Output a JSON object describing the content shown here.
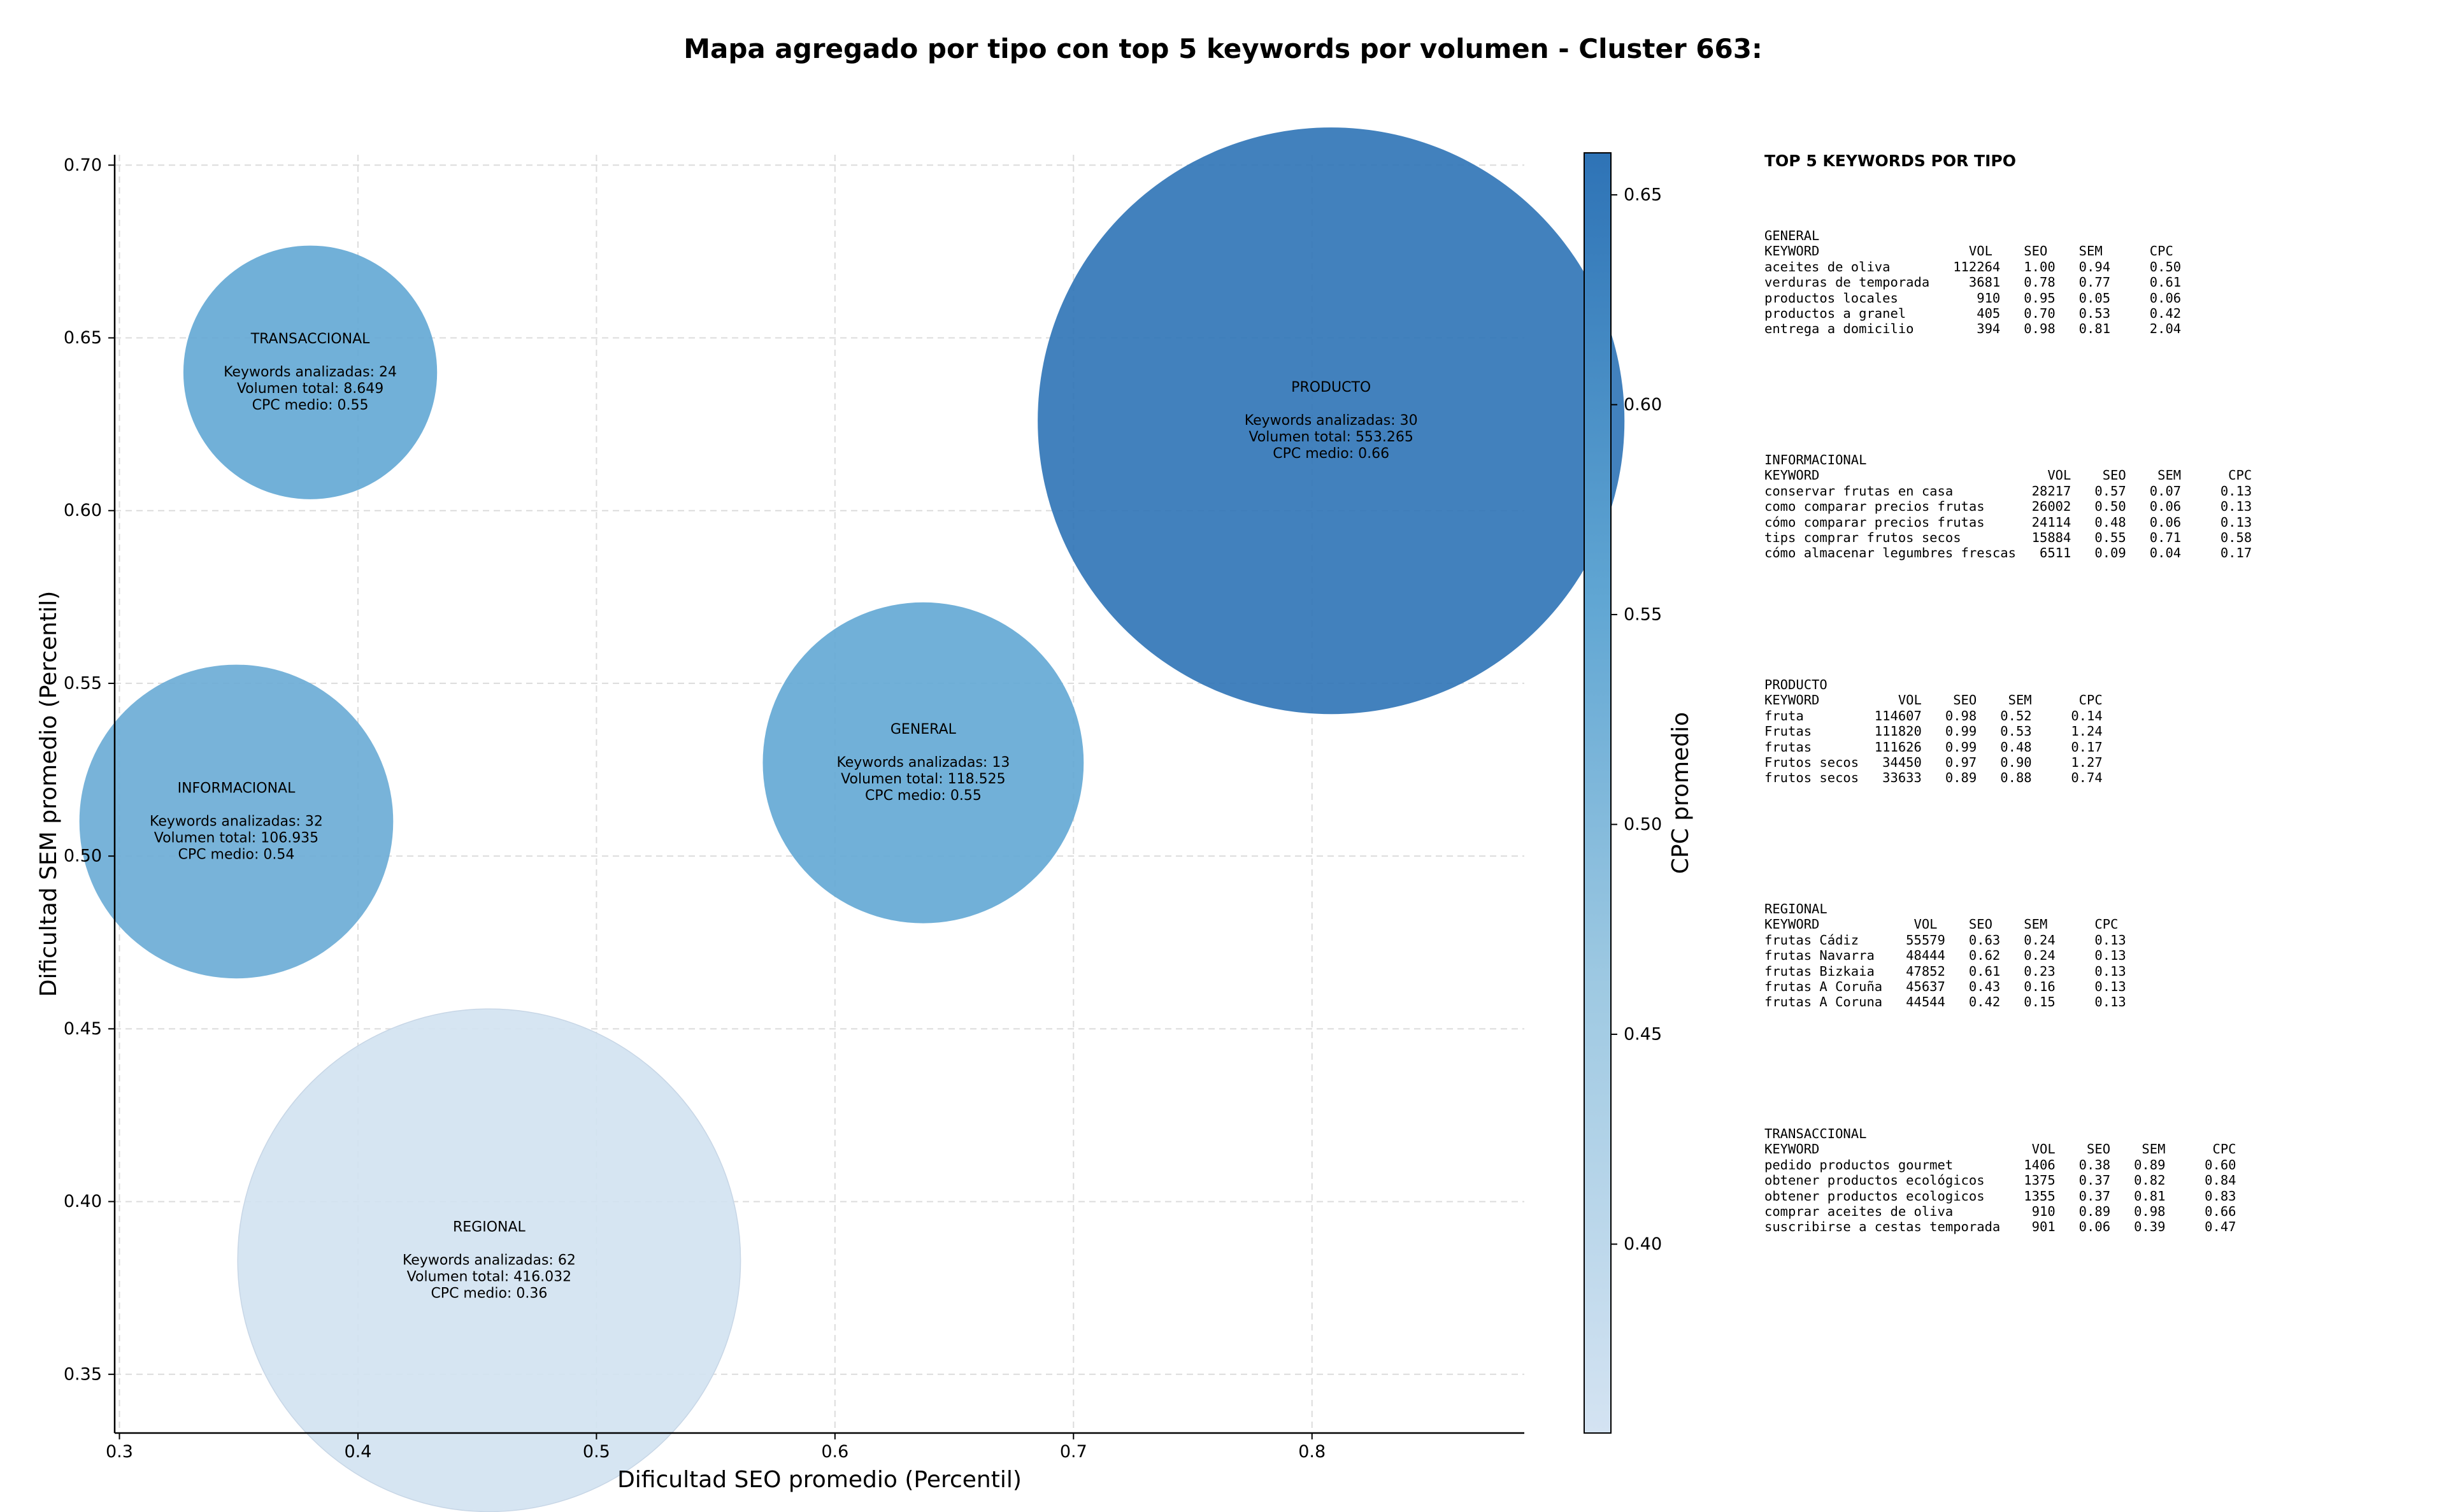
{
  "title": "Mapa agregado por tipo con top 5 keywords por volumen - Cluster 663:",
  "chart_data": {
    "type": "scatter",
    "title": "Mapa agregado por tipo con top 5 keywords por volumen - Cluster 663:",
    "xlabel": "Dificultad SEO promedio (Percentil)",
    "ylabel": "Dificultad SEM promedio (Percentil)",
    "xlim": [
      0.298,
      0.889
    ],
    "ylim": [
      0.333,
      0.703
    ],
    "x_ticks": [
      "0.3",
      "0.4",
      "0.5",
      "0.6",
      "0.7",
      "0.8"
    ],
    "y_ticks": [
      "0.35",
      "0.40",
      "0.45",
      "0.50",
      "0.55",
      "0.60",
      "0.65",
      "0.70"
    ],
    "grid": true,
    "colorbar": {
      "label": "CPC promedio",
      "min": 0.355,
      "max": 0.66,
      "ticks": [
        "0.40",
        "0.45",
        "0.50",
        "0.55",
        "0.60",
        "0.65"
      ]
    },
    "points": [
      {
        "label": "TRANSACCIONAL",
        "x": 0.38,
        "y": 0.64,
        "cpc": 0.55,
        "keywords_line": "Keywords analizadas: 24",
        "volume_line": "Volumen total: 8.649",
        "cpc_line": "CPC medio: 0.55",
        "volume": 8649
      },
      {
        "label": "PRODUCTO",
        "x": 0.808,
        "y": 0.626,
        "cpc": 0.66,
        "keywords_line": "Keywords analizadas: 30",
        "volume_line": "Volumen total: 553.265",
        "cpc_line": "CPC medio: 0.66",
        "volume": 553265
      },
      {
        "label": "GENERAL",
        "x": 0.637,
        "y": 0.527,
        "cpc": 0.55,
        "keywords_line": "Keywords analizadas: 13",
        "volume_line": "Volumen total: 118.525",
        "cpc_line": "CPC medio: 0.55",
        "volume": 118525
      },
      {
        "label": "INFORMACIONAL",
        "x": 0.349,
        "y": 0.51,
        "cpc": 0.54,
        "keywords_line": "Keywords analizadas: 32",
        "volume_line": "Volumen total: 106.935",
        "cpc_line": "CPC medio: 0.54",
        "volume": 106935
      },
      {
        "label": "REGIONAL",
        "x": 0.455,
        "y": 0.383,
        "cpc": 0.36,
        "keywords_line": "Keywords analizadas: 62",
        "volume_line": "Volumen total: 416.032",
        "cpc_line": "CPC medio: 0.36",
        "volume": 416032
      }
    ]
  },
  "side_panel": {
    "title": "TOP 5 KEYWORDS POR TIPO",
    "blocks": [
      {
        "name": "GENERAL",
        "header": "KEYWORD                   VOL    SEO    SEM      CPC",
        "rows": [
          "aceites de oliva        112264   1.00   0.94     0.50",
          "verduras de temporada     3681   0.78   0.77     0.61",
          "productos locales          910   0.95   0.05     0.06",
          "productos a granel         405   0.70   0.53     0.42",
          "entrega a domicilio        394   0.98   0.81     2.04"
        ]
      },
      {
        "name": "INFORMACIONAL",
        "header": "KEYWORD                             VOL    SEO    SEM      CPC",
        "rows": [
          "conservar frutas en casa          28217   0.57   0.07     0.13",
          "como comparar precios frutas      26002   0.50   0.06     0.13",
          "cómo comparar precios frutas      24114   0.48   0.06     0.13",
          "tips comprar frutos secos         15884   0.55   0.71     0.58",
          "cómo almacenar legumbres frescas   6511   0.09   0.04     0.17"
        ]
      },
      {
        "name": "PRODUCTO",
        "header": "KEYWORD          VOL    SEO    SEM      CPC",
        "rows": [
          "fruta         114607   0.98   0.52     0.14",
          "Frutas        111820   0.99   0.53     1.24",
          "frutas        111626   0.99   0.48     0.17",
          "Frutos secos   34450   0.97   0.90     1.27",
          "frutos secos   33633   0.89   0.88     0.74"
        ]
      },
      {
        "name": "REGIONAL",
        "header": "KEYWORD            VOL    SEO    SEM      CPC",
        "rows": [
          "frutas Cádiz      55579   0.63   0.24     0.13",
          "frutas Navarra    48444   0.62   0.24     0.13",
          "frutas Bizkaia    47852   0.61   0.23     0.13",
          "frutas A Coruña   45637   0.43   0.16     0.13",
          "frutas A Coruna   44544   0.42   0.15     0.13"
        ]
      },
      {
        "name": "TRANSACCIONAL",
        "header": "KEYWORD                           VOL    SEO    SEM      CPC",
        "rows": [
          "pedido productos gourmet         1406   0.38   0.89     0.60",
          "obtener productos ecológicos     1375   0.37   0.82     0.84",
          "obtener productos ecologicos     1355   0.37   0.81     0.83",
          "comprar aceites de oliva          910   0.89   0.98     0.66",
          "suscribirse a cestas temporada    901   0.06   0.39     0.47"
        ]
      }
    ]
  }
}
